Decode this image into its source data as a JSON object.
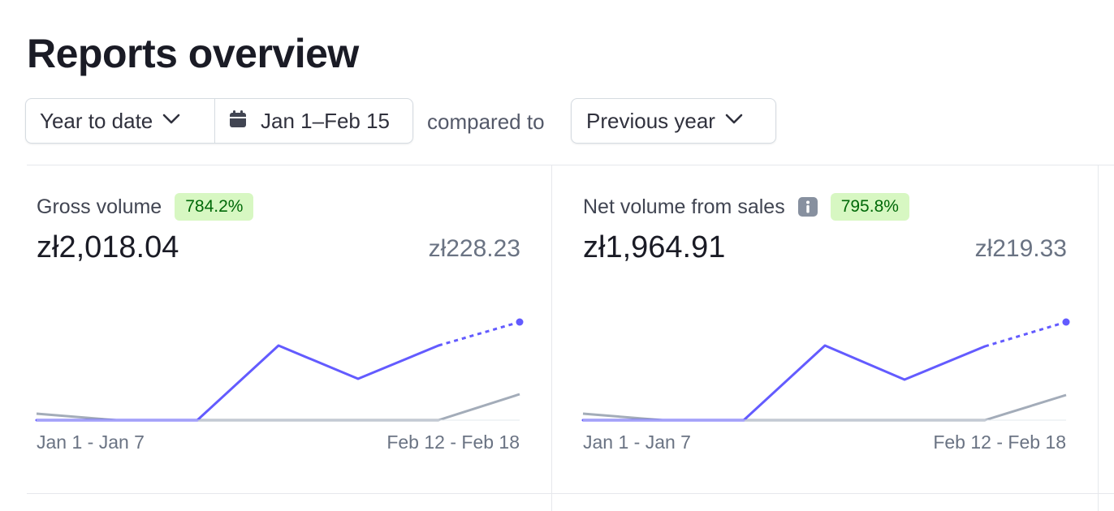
{
  "page": {
    "title": "Reports overview"
  },
  "filters": {
    "range": {
      "label": "Year to date",
      "icon": "chevron-down-icon"
    },
    "dates": {
      "label": "Jan 1–Feb 15",
      "icon": "calendar-icon"
    },
    "compare_text": "compared to",
    "compare": {
      "label": "Previous year",
      "icon": "chevron-down-icon"
    }
  },
  "colors": {
    "current_series": "#635bff",
    "previous_series": "#a3acb9",
    "badge_bg": "#d7f7c2",
    "badge_text": "#006908"
  },
  "cards": [
    {
      "name": "Gross volume",
      "change": "784.2%",
      "value": "zł2,018.04",
      "previous_value": "zł228.23",
      "axis_start": "Jan 1 - Jan 7",
      "axis_end": "Feb 12 - Feb 18"
    },
    {
      "name": "Net volume from sales",
      "info_icon": "info-icon",
      "change": "795.8%",
      "value": "zł1,964.91",
      "previous_value": "zł219.33",
      "axis_start": "Jan 1 - Jan 7",
      "axis_end": "Feb 12 - Feb 18"
    }
  ]
}
